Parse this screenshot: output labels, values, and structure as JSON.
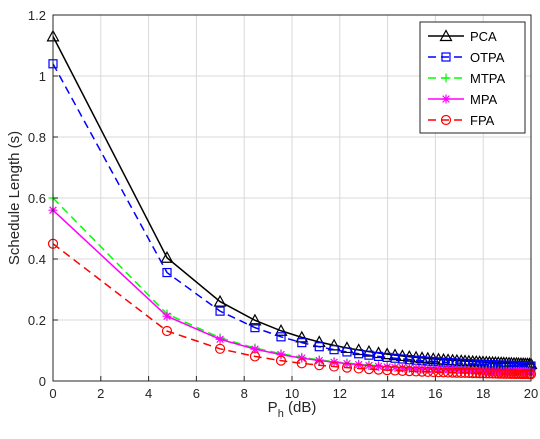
{
  "chart_data": {
    "type": "line",
    "xlabel": "P",
    "xlabel_sub": "h",
    "xlabel_unit": " (dB)",
    "ylabel": "Schedule Length (s)",
    "xlim": [
      0,
      20
    ],
    "ylim": [
      0,
      1.2
    ],
    "xticks": [
      "0",
      "2",
      "4",
      "6",
      "8",
      "10",
      "12",
      "14",
      "16",
      "18",
      "20"
    ],
    "yticks": [
      "0",
      "0.2",
      "0.4",
      "0.6",
      "0.8",
      "1",
      "1.2"
    ],
    "grid": true,
    "legend_position": "top-right",
    "x": [
      0,
      4.77,
      6.99,
      8.45,
      9.54,
      10.41,
      11.14,
      11.76,
      12.3,
      12.79,
      13.22,
      13.62,
      13.98,
      14.31,
      14.62,
      14.91,
      15.19,
      15.44,
      15.68,
      15.91,
      16.13,
      16.34,
      16.53,
      16.72,
      16.9,
      17.08,
      17.24,
      17.4,
      17.56,
      17.71,
      17.85,
      17.99,
      18.13,
      18.26,
      18.39,
      18.51,
      18.63,
      18.75,
      18.86,
      18.97,
      19.08,
      19.18,
      19.29,
      19.39,
      19.48,
      19.58,
      19.67,
      19.76,
      19.85,
      19.94,
      20.0
    ],
    "series": [
      {
        "name": "PCA",
        "color": "#000000",
        "dash": "",
        "marker": "triangle",
        "y0": 1.13,
        "scale": 0.0449
      },
      {
        "name": "OTPA",
        "color": "#0000ff",
        "dash": "8,5",
        "marker": "square",
        "y0": 1.04,
        "scale": 0.0395
      },
      {
        "name": "MTPA",
        "color": "#00ff00",
        "dash": "8,5",
        "marker": "plus",
        "y0": 0.6,
        "scale": 0.0244
      },
      {
        "name": "MPA",
        "color": "#ff00ff",
        "dash": "",
        "marker": "star",
        "y0": 0.56,
        "scale": 0.0236
      },
      {
        "name": "FPA",
        "color": "#ff0000",
        "dash": "8,5",
        "marker": "circle",
        "y0": 0.45,
        "scale": 0.0182
      }
    ]
  }
}
